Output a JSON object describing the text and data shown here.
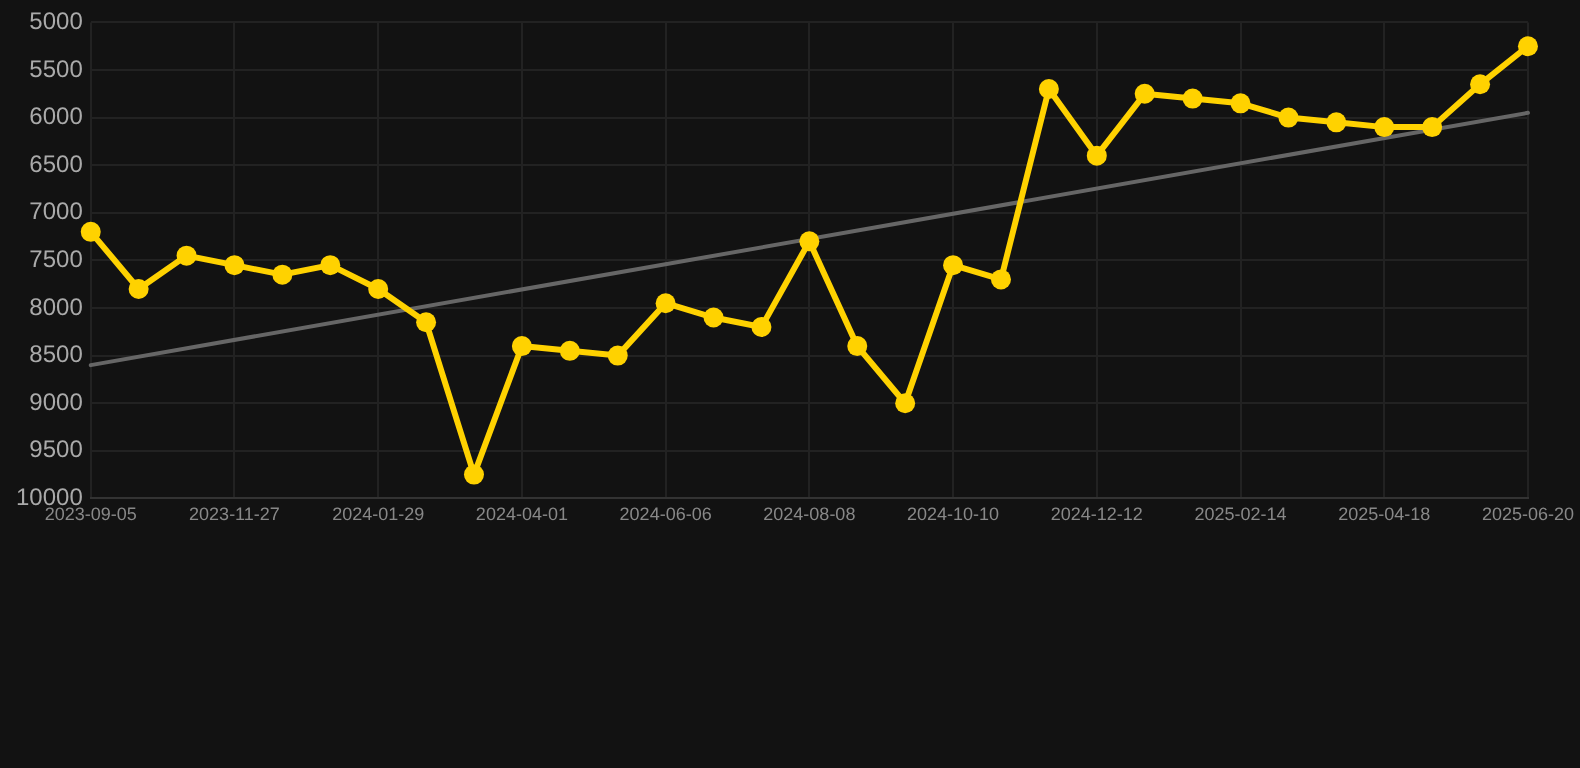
{
  "chart_data": {
    "type": "line",
    "categories": [
      "2023-09-05",
      null,
      null,
      "2023-11-27",
      null,
      null,
      "2024-01-29",
      null,
      null,
      "2024-04-01",
      null,
      null,
      "2024-06-06",
      null,
      null,
      "2024-08-08",
      null,
      null,
      "2024-10-10",
      null,
      null,
      "2024-12-12",
      null,
      null,
      "2025-02-14",
      null,
      null,
      "2025-04-18",
      null,
      null,
      "2025-06-20"
    ],
    "series": [
      {
        "color": "#ffd200",
        "marker": "circle",
        "line_style": "solid",
        "values": [
          7200,
          7800,
          7450,
          7550,
          7650,
          7550,
          7800,
          8150,
          9750,
          8400,
          8450,
          8500,
          7950,
          8100,
          8200,
          7300,
          8400,
          9000,
          7550,
          7700,
          5700,
          6400,
          5750,
          5800,
          5850,
          6000,
          6050,
          6100,
          6100,
          5650,
          5250
        ]
      },
      {
        "type": "line",
        "color": "#666666",
        "marker": "none",
        "line_style": "solid",
        "values": [
          8600,
          null,
          null,
          null,
          null,
          null,
          null,
          null,
          null,
          null,
          null,
          null,
          null,
          null,
          null,
          null,
          null,
          null,
          null,
          null,
          null,
          null,
          null,
          null,
          null,
          null,
          null,
          null,
          null,
          null,
          5950
        ]
      }
    ],
    "ylim": [
      10000,
      5000
    ],
    "yticks": [
      5000,
      5500,
      6000,
      6500,
      7000,
      7500,
      8000,
      8500,
      9000,
      9500,
      10000
    ],
    "grid": true,
    "legend": false
  }
}
